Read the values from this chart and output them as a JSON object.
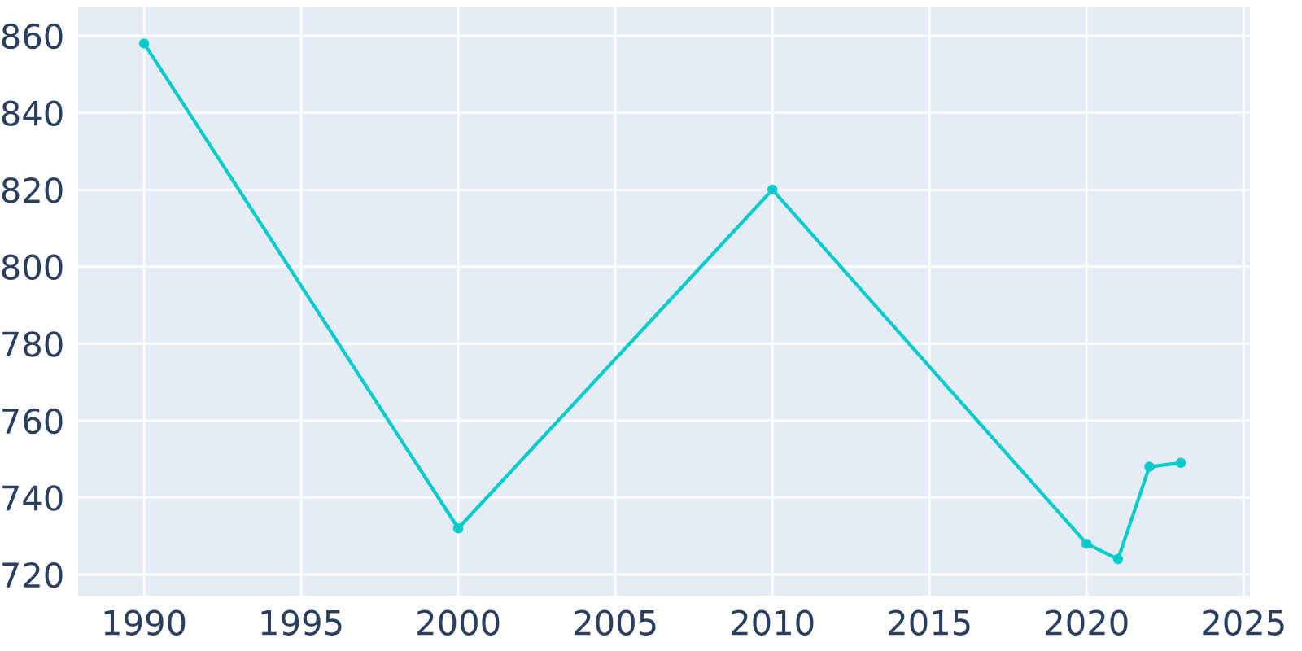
{
  "chart_data": {
    "type": "line",
    "x": [
      1990,
      2000,
      2010,
      2020,
      2021,
      2022,
      2023
    ],
    "series": [
      {
        "color": "#00cccc",
        "values": [
          858,
          732,
          820,
          728,
          724,
          748,
          749
        ]
      }
    ],
    "xlim": [
      1987.9,
      2025.2
    ],
    "ylim": [
      714.5,
      867.6
    ],
    "xticks": [
      1990,
      1995,
      2000,
      2005,
      2010,
      2015,
      2020,
      2025
    ],
    "yticks": [
      720,
      740,
      760,
      780,
      800,
      820,
      840,
      860
    ],
    "grid": true,
    "marker": "circle",
    "line_style": "solid",
    "legend": false
  }
}
